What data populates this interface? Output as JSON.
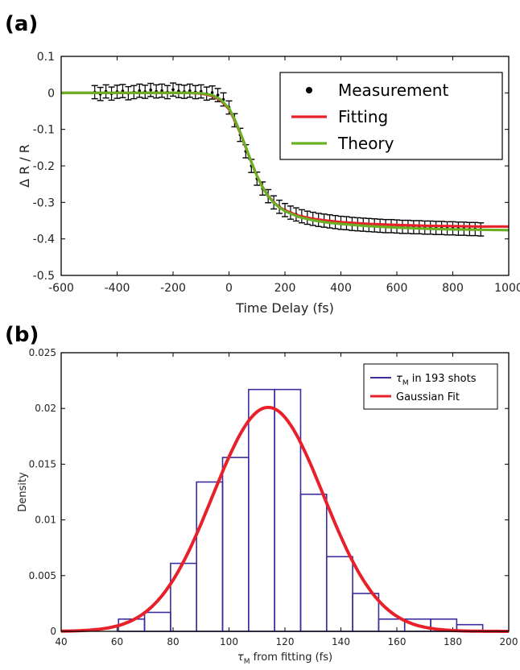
{
  "panels": {
    "a_label": "(a)",
    "b_label": "(b)"
  },
  "chart_data": [
    {
      "type": "line",
      "xlabel": "Time Delay (fs)",
      "ylabel": "Δ R / R",
      "xlim": [
        -600,
        1000
      ],
      "ylim": [
        -0.5,
        0.1
      ],
      "xticks": [
        "-600",
        "-400",
        "-200",
        "0",
        "200",
        "400",
        "600",
        "800",
        "1000"
      ],
      "yticks": [
        "0.1",
        "0",
        "-0.1",
        "-0.2",
        "-0.3",
        "-0.4",
        "-0.5"
      ],
      "legend_position": "top-right",
      "grid": false,
      "series": [
        {
          "name": "Measurement",
          "kind": "scatter-errorbar",
          "color": "#000000",
          "x": [
            -480,
            -460,
            -440,
            -420,
            -400,
            -380,
            -360,
            -340,
            -320,
            -300,
            -280,
            -260,
            -240,
            -220,
            -200,
            -180,
            -160,
            -140,
            -120,
            -100,
            -80,
            -60,
            -40,
            -20,
            0,
            20,
            40,
            60,
            80,
            100,
            120,
            140,
            160,
            180,
            200,
            220,
            240,
            260,
            280,
            300,
            320,
            340,
            360,
            380,
            400,
            420,
            440,
            460,
            480,
            500,
            520,
            540,
            560,
            580,
            600,
            620,
            640,
            660,
            680,
            700,
            720,
            740,
            760,
            780,
            800,
            820,
            840,
            860,
            880,
            900
          ],
          "y": [
            0.002,
            -0.003,
            0.004,
            -0.002,
            0.003,
            0.005,
            -0.001,
            0.002,
            0.006,
            0.003,
            0.008,
            0.004,
            0.006,
            0.002,
            0.009,
            0.005,
            0.003,
            0.006,
            0.002,
            0.004,
            -0.002,
            0.001,
            -0.006,
            -0.018,
            -0.04,
            -0.075,
            -0.115,
            -0.16,
            -0.2,
            -0.235,
            -0.262,
            -0.283,
            -0.3,
            -0.312,
            -0.321,
            -0.328,
            -0.333,
            -0.338,
            -0.342,
            -0.345,
            -0.348,
            -0.35,
            -0.352,
            -0.354,
            -0.356,
            -0.357,
            -0.359,
            -0.36,
            -0.361,
            -0.362,
            -0.363,
            -0.364,
            -0.365,
            -0.365,
            -0.366,
            -0.367,
            -0.367,
            -0.368,
            -0.368,
            -0.369,
            -0.369,
            -0.37,
            -0.37,
            -0.371,
            -0.371,
            -0.372,
            -0.372,
            -0.373,
            -0.373,
            -0.374
          ],
          "error": 0.018
        },
        {
          "name": "Fitting",
          "kind": "line",
          "color": "#e8202a",
          "x": [
            -600,
            -300,
            -150,
            -100,
            -60,
            -30,
            0,
            20,
            40,
            60,
            80,
            100,
            120,
            140,
            160,
            180,
            200,
            250,
            300,
            350,
            400,
            500,
            600,
            700,
            800,
            900,
            1000
          ],
          "y": [
            0.0,
            0.0,
            0.0,
            -0.002,
            -0.008,
            -0.02,
            -0.045,
            -0.075,
            -0.11,
            -0.15,
            -0.19,
            -0.228,
            -0.258,
            -0.282,
            -0.3,
            -0.313,
            -0.322,
            -0.337,
            -0.345,
            -0.35,
            -0.354,
            -0.359,
            -0.362,
            -0.364,
            -0.365,
            -0.366,
            -0.366
          ]
        },
        {
          "name": "Theory",
          "kind": "line",
          "color": "#6ab023",
          "x": [
            -600,
            -300,
            -150,
            -100,
            -60,
            -30,
            0,
            20,
            40,
            60,
            80,
            100,
            120,
            140,
            160,
            180,
            200,
            250,
            300,
            350,
            400,
            500,
            600,
            700,
            800,
            900,
            1000
          ],
          "y": [
            0.0,
            0.0,
            0.0,
            -0.001,
            -0.006,
            -0.018,
            -0.042,
            -0.072,
            -0.108,
            -0.148,
            -0.19,
            -0.228,
            -0.259,
            -0.283,
            -0.301,
            -0.314,
            -0.324,
            -0.34,
            -0.349,
            -0.355,
            -0.359,
            -0.365,
            -0.369,
            -0.372,
            -0.374,
            -0.375,
            -0.376
          ]
        }
      ]
    },
    {
      "type": "bar",
      "xlabel": "τM from fitting (fs)",
      "ylabel": "Density",
      "xlim": [
        40,
        200
      ],
      "ylim": [
        0,
        0.025
      ],
      "xticks": [
        "40",
        "60",
        "80",
        "100",
        "120",
        "140",
        "160",
        "180",
        "200"
      ],
      "yticks": [
        "0.025",
        "0.02",
        "0.015",
        "0.01",
        "0.005",
        "0"
      ],
      "legend_position": "top-right",
      "grid": false,
      "bin_edges": [
        60.5,
        69.8,
        79.1,
        88.4,
        97.7,
        107.0,
        116.3,
        125.6,
        134.9,
        144.2,
        153.5,
        162.8,
        172.1,
        181.4,
        190.7
      ],
      "values": [
        0.0011,
        0.0017,
        0.0061,
        0.0134,
        0.0156,
        0.0217,
        0.0217,
        0.0123,
        0.0067,
        0.0034,
        0.0011,
        0.0011,
        0.0011,
        0.0006
      ],
      "series": [
        {
          "name": "τM in 193 shots",
          "kind": "histogram",
          "color": "#3a2d9e"
        },
        {
          "name": "Gaussian Fit",
          "kind": "line",
          "color": "#e8202a",
          "mean": 114,
          "sigma": 19.8,
          "peak": 0.0201
        }
      ]
    }
  ]
}
